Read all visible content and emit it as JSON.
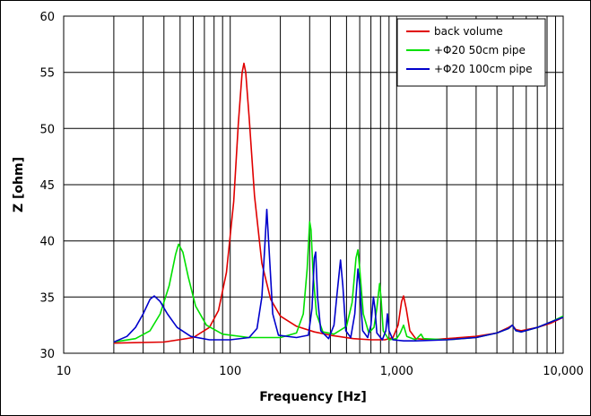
{
  "chart_data": {
    "type": "line",
    "title": "",
    "xlabel": "Frequency [Hz]",
    "ylabel": "Z [ohm]",
    "x_scale": "log",
    "xlim": [
      10,
      10000
    ],
    "ylim": [
      30,
      60
    ],
    "x_ticks": [
      10,
      100,
      1000,
      10000
    ],
    "x_tick_labels": [
      "10",
      "100",
      "1,000",
      "10,000"
    ],
    "y_ticks": [
      30,
      35,
      40,
      45,
      50,
      55,
      60
    ],
    "y_tick_labels": [
      "30",
      "35",
      "40",
      "45",
      "50",
      "55",
      "60"
    ],
    "grid": true,
    "legend_position": "top-right",
    "series": [
      {
        "name": "back volume",
        "color": "#e00000",
        "points": [
          [
            20,
            30.9
          ],
          [
            40,
            31.0
          ],
          [
            60,
            31.4
          ],
          [
            75,
            32.3
          ],
          [
            85,
            33.8
          ],
          [
            95,
            37.2
          ],
          [
            105,
            43.5
          ],
          [
            112,
            50.5
          ],
          [
            118,
            55.0
          ],
          [
            121,
            55.8
          ],
          [
            124,
            55.0
          ],
          [
            130,
            51.0
          ],
          [
            140,
            44.0
          ],
          [
            155,
            38.0
          ],
          [
            175,
            34.8
          ],
          [
            200,
            33.3
          ],
          [
            250,
            32.4
          ],
          [
            320,
            31.9
          ],
          [
            400,
            31.6
          ],
          [
            550,
            31.3
          ],
          [
            700,
            31.2
          ],
          [
            850,
            31.2
          ],
          [
            950,
            31.4
          ],
          [
            1020,
            32.5
          ],
          [
            1070,
            34.6
          ],
          [
            1100,
            35.1
          ],
          [
            1140,
            34.0
          ],
          [
            1200,
            32.0
          ],
          [
            1300,
            31.3
          ],
          [
            1600,
            31.2
          ],
          [
            2000,
            31.3
          ],
          [
            3000,
            31.5
          ],
          [
            4000,
            31.8
          ],
          [
            4700,
            32.3
          ],
          [
            4950,
            32.5
          ],
          [
            5200,
            32.1
          ],
          [
            5600,
            32.0
          ],
          [
            7000,
            32.3
          ],
          [
            8500,
            32.7
          ],
          [
            10000,
            33.2
          ]
        ]
      },
      {
        "name": "+Φ20 50cm pipe",
        "color": "#00e000",
        "points": [
          [
            20,
            31.0
          ],
          [
            27,
            31.3
          ],
          [
            33,
            32.0
          ],
          [
            38,
            33.5
          ],
          [
            43,
            36.0
          ],
          [
            47,
            38.8
          ],
          [
            49,
            39.7
          ],
          [
            52,
            39.0
          ],
          [
            56,
            36.8
          ],
          [
            62,
            34.2
          ],
          [
            72,
            32.5
          ],
          [
            90,
            31.7
          ],
          [
            130,
            31.4
          ],
          [
            200,
            31.4
          ],
          [
            250,
            31.8
          ],
          [
            275,
            33.5
          ],
          [
            290,
            37.5
          ],
          [
            300,
            41.7
          ],
          [
            306,
            41.0
          ],
          [
            315,
            37.0
          ],
          [
            330,
            33.5
          ],
          [
            360,
            31.9
          ],
          [
            420,
            31.7
          ],
          [
            500,
            32.4
          ],
          [
            540,
            34.5
          ],
          [
            570,
            38.5
          ],
          [
            585,
            39.2
          ],
          [
            600,
            37.5
          ],
          [
            630,
            33.5
          ],
          [
            680,
            31.8
          ],
          [
            730,
            32.3
          ],
          [
            760,
            34.0
          ],
          [
            790,
            36.2
          ],
          [
            805,
            35.0
          ],
          [
            830,
            32.0
          ],
          [
            900,
            31.2
          ],
          [
            1000,
            31.3
          ],
          [
            1050,
            31.8
          ],
          [
            1100,
            32.5
          ],
          [
            1150,
            31.5
          ],
          [
            1300,
            31.2
          ],
          [
            1400,
            31.7
          ],
          [
            1450,
            31.3
          ],
          [
            2000,
            31.2
          ],
          [
            3000,
            31.4
          ],
          [
            4000,
            31.8
          ],
          [
            4700,
            32.2
          ],
          [
            4950,
            32.5
          ],
          [
            5200,
            32.0
          ],
          [
            5600,
            31.9
          ],
          [
            7000,
            32.3
          ],
          [
            8500,
            32.8
          ],
          [
            10000,
            33.3
          ]
        ]
      },
      {
        "name": "+Φ20 100cm pipe",
        "color": "#0000cc",
        "points": [
          [
            20,
            31.0
          ],
          [
            24,
            31.5
          ],
          [
            27,
            32.3
          ],
          [
            30,
            33.5
          ],
          [
            33,
            34.8
          ],
          [
            35,
            35.1
          ],
          [
            38,
            34.6
          ],
          [
            42,
            33.5
          ],
          [
            48,
            32.3
          ],
          [
            58,
            31.5
          ],
          [
            75,
            31.2
          ],
          [
            100,
            31.2
          ],
          [
            130,
            31.4
          ],
          [
            145,
            32.2
          ],
          [
            155,
            35.0
          ],
          [
            162,
            40.0
          ],
          [
            166,
            42.8
          ],
          [
            170,
            40.0
          ],
          [
            180,
            33.5
          ],
          [
            195,
            31.6
          ],
          [
            250,
            31.4
          ],
          [
            295,
            31.6
          ],
          [
            310,
            34.0
          ],
          [
            320,
            38.5
          ],
          [
            326,
            39.0
          ],
          [
            335,
            35.0
          ],
          [
            350,
            32.0
          ],
          [
            390,
            31.3
          ],
          [
            420,
            32.5
          ],
          [
            440,
            35.5
          ],
          [
            460,
            38.3
          ],
          [
            475,
            36.0
          ],
          [
            495,
            32.0
          ],
          [
            530,
            31.4
          ],
          [
            560,
            33.5
          ],
          [
            585,
            37.5
          ],
          [
            600,
            36.0
          ],
          [
            625,
            32.0
          ],
          [
            670,
            31.4
          ],
          [
            700,
            32.5
          ],
          [
            725,
            35.0
          ],
          [
            740,
            34.0
          ],
          [
            760,
            31.8
          ],
          [
            820,
            31.2
          ],
          [
            860,
            32.0
          ],
          [
            880,
            33.5
          ],
          [
            900,
            32.0
          ],
          [
            950,
            31.2
          ],
          [
            1100,
            31.1
          ],
          [
            1300,
            31.1
          ],
          [
            2000,
            31.2
          ],
          [
            3000,
            31.4
          ],
          [
            4000,
            31.8
          ],
          [
            4700,
            32.2
          ],
          [
            4950,
            32.5
          ],
          [
            5200,
            32.0
          ],
          [
            5600,
            31.9
          ],
          [
            7000,
            32.3
          ],
          [
            8500,
            32.8
          ],
          [
            10000,
            33.2
          ]
        ]
      }
    ]
  }
}
